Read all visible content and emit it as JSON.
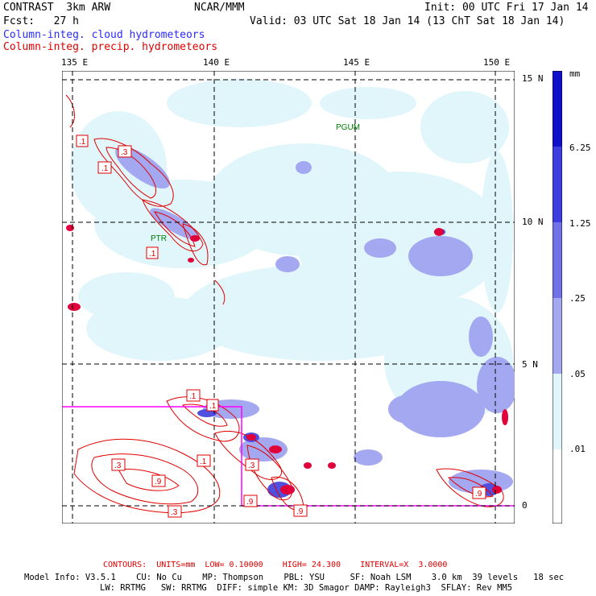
{
  "header": {
    "left_line1": "CONTRAST  3km ARW",
    "center_line1": "NCAR/MMM",
    "right_line1": "Init: 00 UTC Fri 17 Jan 14",
    "left_line2": "Fcst:   27 h",
    "right_line2": "Valid: 03 UTC Sat 18 Jan 14 (13 ChT Sat 18 Jan 14)",
    "legend_cloud": "Column-integ. cloud hydrometeors",
    "legend_precip": "Column-integ. precip. hydrometeors"
  },
  "axes": {
    "lon_labels": [
      "135 E",
      "140 E",
      "145 E",
      "150 E"
    ],
    "lat_labels": [
      "15 N",
      "10 N",
      "5 N",
      "0"
    ]
  },
  "stations": [
    "PGUM",
    "PTR"
  ],
  "contour_labels": [
    ".1",
    ".3",
    ".1",
    ".1",
    ".1",
    ".1",
    ".3",
    ".1",
    ".3",
    ".9",
    ".3",
    ".9",
    ".9",
    ".9"
  ],
  "colorbar": {
    "unit": "mm",
    "levels": [
      "6.25",
      "1.25",
      ".25",
      ".05",
      ".01"
    ],
    "colors": [
      "#ffffff",
      "#e0f6fb",
      "#c4d4f6",
      "#a4a8f0",
      "#7272e8",
      "#3d3de0",
      "#1010cc"
    ]
  },
  "footer": {
    "contours": "CONTOURS:  UNITS=mm  LOW= 0.10000    HIGH= 24.300    INTERVAL=X  3.0000",
    "model_line1": "Model Info: V3.5.1    CU: No Cu    MP: Thompson    PBL: YSU     SF: Noah LSM    3.0 km  39 levels   18 sec",
    "model_line2": "LW: RRTMG   SW: RRTMG  DIFF: simple KM: 3D Smagor DAMP: Rayleigh3  SFLAY: Rev MM5"
  }
}
